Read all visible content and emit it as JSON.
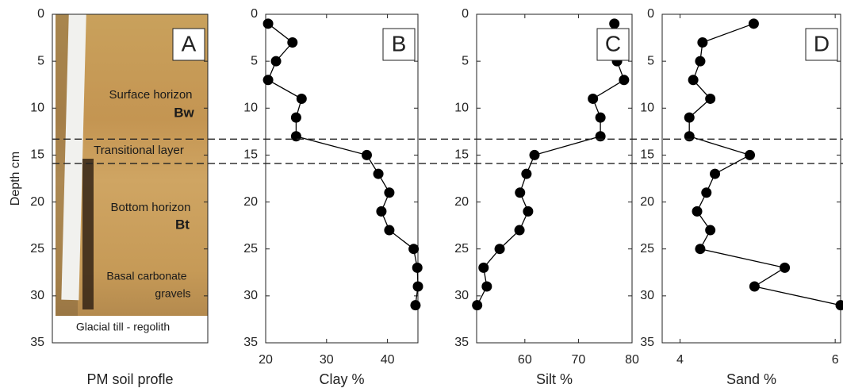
{
  "chart_data": [
    {
      "type": "image",
      "panel_label": "A",
      "xlabel": "PM soil profle",
      "ylabel": "Depth cm",
      "ylim": [
        0,
        35
      ],
      "yticks": [
        0,
        5,
        10,
        15,
        20,
        25,
        30,
        35
      ],
      "annotations": [
        "Surface horizon",
        "Bw",
        "Transitional layer",
        "Bottom horizon",
        "Bt",
        "Basal carbonate",
        "gravels",
        "Glacial till - regolith"
      ]
    },
    {
      "type": "profile",
      "panel_label": "B",
      "xlabel": "Clay %",
      "color": "#000000",
      "xlim": [
        20,
        45
      ],
      "xticks": [
        20,
        30,
        40
      ],
      "ylim": [
        0,
        35
      ],
      "yticks": [
        0,
        5,
        10,
        15,
        20,
        25,
        30,
        35
      ],
      "x": [
        20.4,
        24.4,
        21.7,
        20.4,
        25.9,
        25.0,
        25.0,
        36.6,
        38.5,
        40.3,
        39.0,
        40.3,
        44.3,
        44.9,
        45.0,
        44.6
      ],
      "y": [
        1,
        3,
        5,
        7,
        9,
        11,
        13,
        15,
        17,
        19,
        21,
        23,
        25,
        27,
        29,
        31
      ]
    },
    {
      "type": "profile",
      "panel_label": "C",
      "xlabel": "Silt %",
      "color": "#000000",
      "xlim": [
        51,
        80
      ],
      "xticks": [
        60,
        70,
        80
      ],
      "ylim": [
        0,
        35
      ],
      "yticks": [
        0,
        5,
        10,
        15,
        20,
        25,
        30,
        35
      ],
      "x": [
        76.7,
        74.7,
        77.2,
        78.5,
        72.7,
        74.1,
        74.1,
        61.8,
        60.3,
        59.1,
        60.6,
        59.0,
        55.3,
        52.3,
        52.9,
        51.1
      ],
      "y": [
        1,
        3,
        5,
        7,
        9,
        11,
        13,
        15,
        17,
        19,
        21,
        23,
        25,
        27,
        29,
        31
      ]
    },
    {
      "type": "profile",
      "panel_label": "D",
      "xlabel": "Sand %",
      "color": "#000000",
      "xlim": [
        3.77,
        6.07
      ],
      "xticks": [
        4,
        6
      ],
      "ylim": [
        0,
        35
      ],
      "yticks": [
        0,
        5,
        10,
        15,
        20,
        25,
        30,
        35
      ],
      "x": [
        4.95,
        4.29,
        4.26,
        4.17,
        4.39,
        4.12,
        4.12,
        4.9,
        4.45,
        4.34,
        4.22,
        4.39,
        4.26,
        5.35,
        4.96,
        6.07
      ],
      "y": [
        1,
        3,
        5,
        7,
        9,
        11,
        13,
        15,
        17,
        19,
        21,
        23,
        25,
        27,
        29,
        31
      ]
    }
  ],
  "depth_boundaries": [
    13.3,
    15.9
  ]
}
